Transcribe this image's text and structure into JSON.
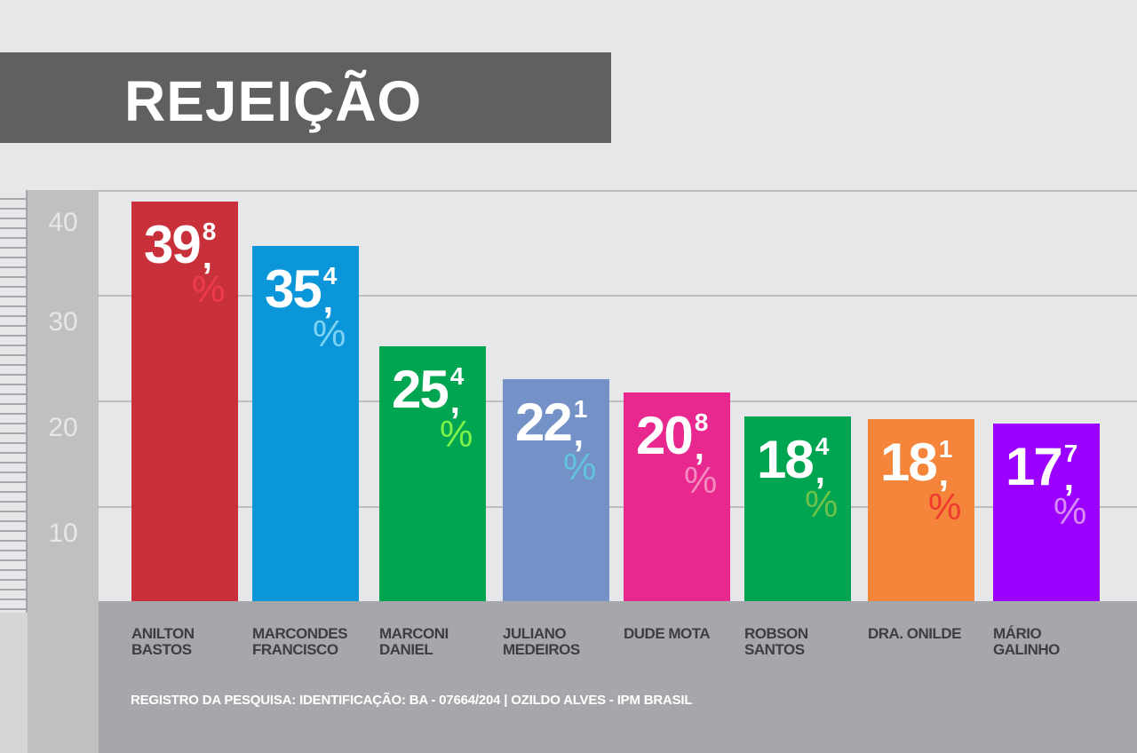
{
  "chart_data": {
    "type": "bar",
    "title": "REJEIÇÃO",
    "ylabel": "",
    "xlabel": "",
    "ylim": [
      0,
      40
    ],
    "yticks": [
      "40",
      "30",
      "20",
      "10"
    ],
    "categories": [
      [
        "ANILTON",
        "BASTOS"
      ],
      [
        "MARCONDES",
        "FRANCISCO"
      ],
      [
        "MARCONI",
        "DANIEL"
      ],
      [
        "JULIANO",
        "MEDEIROS"
      ],
      [
        "DUDE MOTA",
        ""
      ],
      [
        "ROBSON",
        "SANTOS"
      ],
      [
        "DRA. ONILDE",
        ""
      ],
      [
        "MÁRIO",
        "GALINHO"
      ]
    ],
    "values": [
      39.8,
      35.4,
      25.4,
      22.1,
      20.8,
      18.4,
      18.1,
      17.7
    ],
    "labels": [
      {
        "int": "39",
        "dec": "8"
      },
      {
        "int": "35",
        "dec": "4"
      },
      {
        "int": "25",
        "dec": "4"
      },
      {
        "int": "22",
        "dec": "1"
      },
      {
        "int": "20",
        "dec": "8"
      },
      {
        "int": "18",
        "dec": "4"
      },
      {
        "int": "18",
        "dec": "1"
      },
      {
        "int": "17",
        "dec": "7"
      }
    ],
    "comma": ",",
    "percent": "%",
    "colors": [
      "#c8313a",
      "#0a96d8",
      "#00a551",
      "#7491c8",
      "#e8288e",
      "#00a551",
      "#f4853a",
      "#9b00ff"
    ],
    "percent_colors": [
      "#ef3b48",
      "#7fd3f2",
      "#7ef24a",
      "#5fc4dc",
      "#f489c0",
      "#6cc24a",
      "#ef3b2f",
      "#d88cf6"
    ],
    "grid": true
  },
  "footer": "REGISTRO DA PESQUISA:  IDENTIFICAÇÃO: BA - 07664/204 | OZILDO ALVES - IPM BRASIL"
}
